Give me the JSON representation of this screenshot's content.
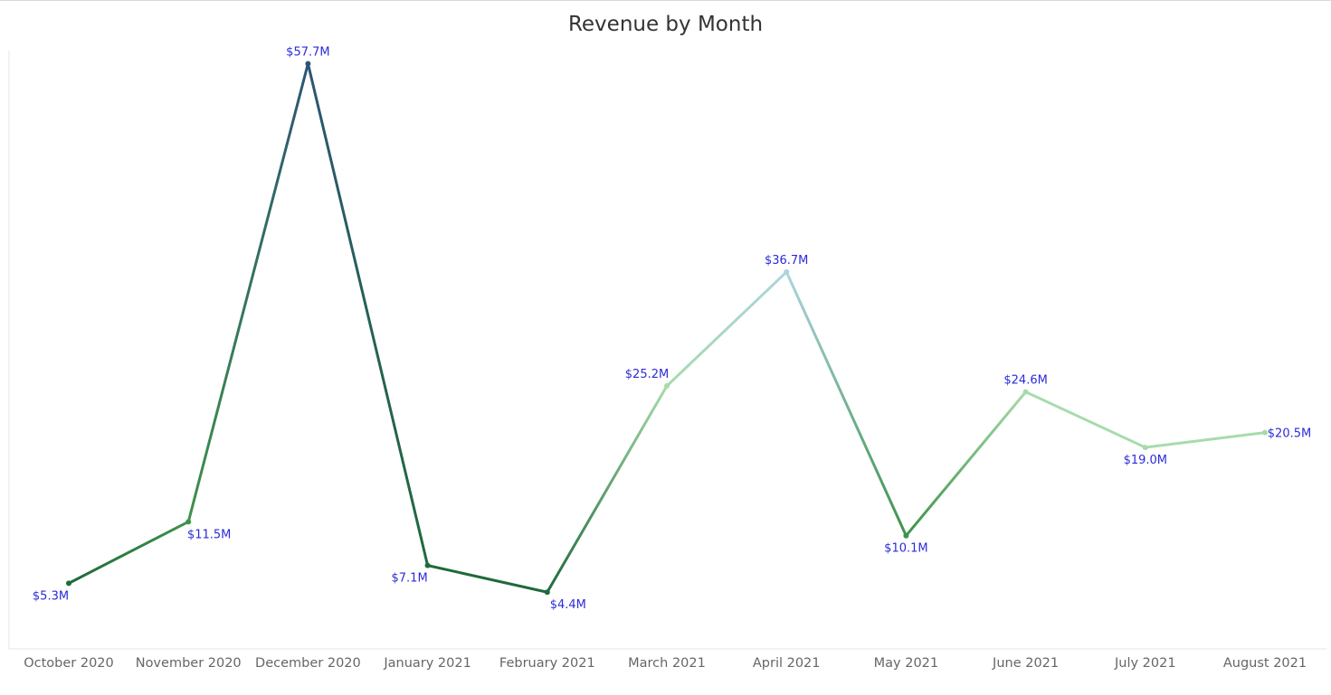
{
  "chart_data": {
    "type": "line",
    "title": "Revenue by Month",
    "xlabel": "",
    "ylabel": "",
    "categories": [
      "October 2020",
      "November 2020",
      "December 2020",
      "January 2021",
      "February 2021",
      "March 2021",
      "April 2021",
      "May 2021",
      "June 2021",
      "July 2021",
      "August 2021"
    ],
    "values": [
      5.3,
      11.5,
      57.7,
      7.1,
      4.4,
      25.2,
      36.7,
      10.1,
      24.6,
      19.0,
      20.5
    ],
    "data_labels": [
      "$5.3M",
      "$11.5M",
      "$57.7M",
      "$7.1M",
      "$4.4M",
      "$25.2M",
      "$36.7M",
      "$10.1M",
      "$24.6M",
      "$19.0M",
      "$20.5M"
    ],
    "label_positions": [
      "below-left",
      "below-right",
      "above",
      "below-left",
      "below-right",
      "above-left",
      "above",
      "below",
      "above",
      "below",
      "right"
    ],
    "value_unit": "$M",
    "grid": false,
    "legend": "none",
    "color_scale": {
      "low": "#a7dbab",
      "mid": "#3e9249",
      "dark": "#1f6a3b",
      "high": "#2c5673",
      "accent": "#acd4df"
    },
    "label_color": "#2b2bdb",
    "axis_color": "#e6e6e6"
  }
}
